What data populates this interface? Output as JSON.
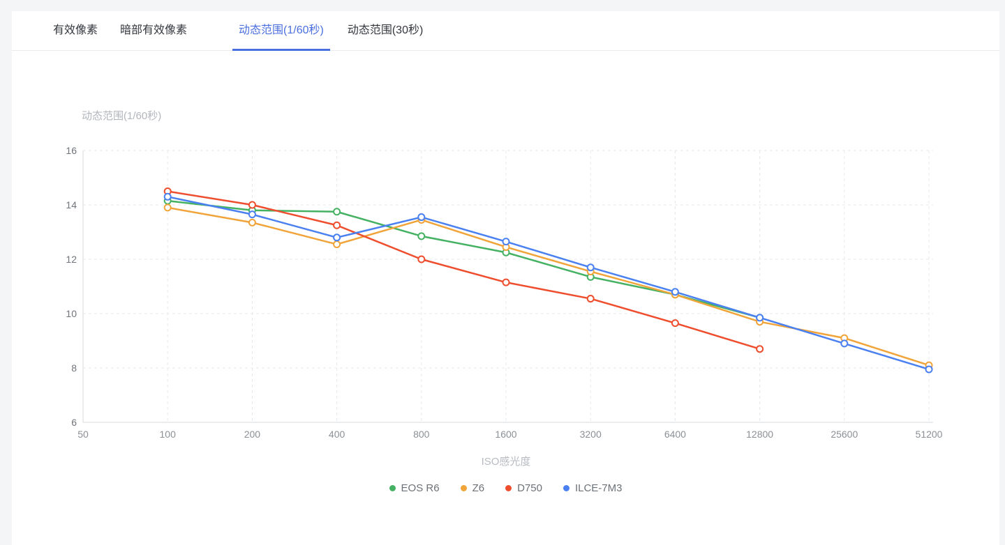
{
  "tabs": [
    {
      "label": "有效像素",
      "active": false
    },
    {
      "label": "暗部有效像素",
      "active": false
    },
    {
      "label": "动态范围(1/60秒)",
      "active": true
    },
    {
      "label": "动态范围(30秒)",
      "active": false
    }
  ],
  "colors": {
    "tab_active": "#4a6fdf",
    "page_bg": "#f4f5f7",
    "card_bg": "#ffffff",
    "grid": "#e6e9ec",
    "axis": "#d7dade",
    "y_tick_text": "#6f747a",
    "x_tick_text": "#8b9096"
  },
  "chart_data": {
    "type": "line",
    "title": "动态范围(1/60秒)",
    "xlabel": "ISO感光度",
    "ylabel": "",
    "x_scale": "log2",
    "x_ticks": [
      50,
      100,
      200,
      400,
      800,
      1600,
      3200,
      6400,
      12800,
      25600,
      51200
    ],
    "y_ticks": [
      6,
      8,
      10,
      12,
      14,
      16
    ],
    "ylim": [
      6,
      16
    ],
    "grid": "dashed",
    "legend_position": "bottom",
    "series": [
      {
        "name": "EOS R6",
        "color": "#45b162",
        "points": [
          [
            100,
            14.15
          ],
          [
            200,
            13.8
          ],
          [
            400,
            13.75
          ],
          [
            800,
            12.85
          ],
          [
            1600,
            12.25
          ],
          [
            3200,
            11.35
          ],
          [
            6400,
            10.7
          ],
          [
            12800,
            9.85
          ]
        ]
      },
      {
        "name": "Z6",
        "color": "#f0a43a",
        "points": [
          [
            100,
            13.9
          ],
          [
            200,
            13.35
          ],
          [
            400,
            12.55
          ],
          [
            800,
            13.45
          ],
          [
            1600,
            12.45
          ],
          [
            3200,
            11.55
          ],
          [
            6400,
            10.7
          ],
          [
            12800,
            9.7
          ],
          [
            25600,
            9.1
          ],
          [
            51200,
            8.1
          ]
        ]
      },
      {
        "name": "D750",
        "color": "#ee4e2e",
        "points": [
          [
            100,
            14.5
          ],
          [
            200,
            14.0
          ],
          [
            400,
            13.25
          ],
          [
            800,
            12.0
          ],
          [
            1600,
            11.15
          ],
          [
            3200,
            10.55
          ],
          [
            6400,
            9.65
          ],
          [
            12800,
            8.7
          ]
        ]
      },
      {
        "name": "ILCE-7M3",
        "color": "#4a80f0",
        "points": [
          [
            100,
            14.3
          ],
          [
            200,
            13.65
          ],
          [
            400,
            12.8
          ],
          [
            800,
            13.55
          ],
          [
            1600,
            12.65
          ],
          [
            3200,
            11.7
          ],
          [
            6400,
            10.8
          ],
          [
            12800,
            9.85
          ],
          [
            25600,
            8.9
          ],
          [
            51200,
            7.95
          ]
        ]
      }
    ]
  }
}
